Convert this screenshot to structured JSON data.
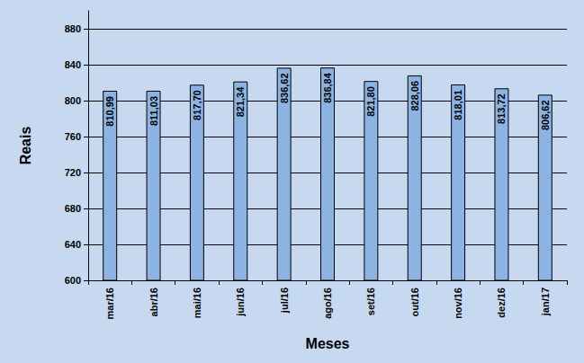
{
  "chart_data": {
    "type": "bar",
    "x_label": "Meses",
    "y_label": "Reais",
    "categories": [
      "mar/16",
      "abr/16",
      "mai/16",
      "jun/16",
      "jul/16",
      "ago/16",
      "set/16",
      "out/16",
      "nov/16",
      "dez/16",
      "jan/17"
    ],
    "values": [
      810.99,
      811.03,
      817.7,
      821.34,
      836.62,
      836.84,
      821.8,
      828.06,
      818.01,
      813.72,
      806.62
    ],
    "value_labels": [
      "810,99",
      "811,03",
      "817,70",
      "821,34",
      "836,62",
      "836,84",
      "821,80",
      "828,06",
      "818,01",
      "813,72",
      "806,62"
    ],
    "color": "#8db3e2",
    "data_labels": true,
    "ylim": [
      600,
      900
    ],
    "yticks": [
      600,
      640,
      680,
      720,
      760,
      800,
      840,
      880
    ],
    "grid": true
  }
}
